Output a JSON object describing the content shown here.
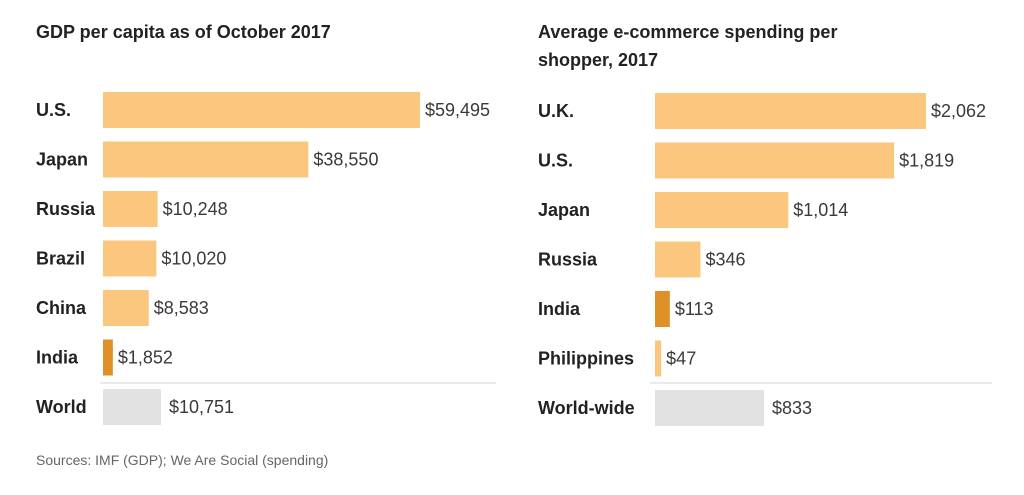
{
  "colors": {
    "bar": "#fbc67e",
    "highlight": "#df9128",
    "world": "#e2e2e2",
    "divider": "#d6d6d6"
  },
  "chart_data": [
    {
      "type": "bar",
      "orientation": "horizontal",
      "title": "GDP per capita as of October 2017",
      "categories": [
        "U.S.",
        "Japan",
        "Russia",
        "Brazil",
        "China",
        "India"
      ],
      "values": [
        59495,
        38550,
        10248,
        10020,
        8583,
        1852
      ],
      "value_labels": [
        "$59,495",
        "$38,550",
        "$10,248",
        "$10,020",
        "$8,583",
        "$1,852"
      ],
      "highlight": [
        "India"
      ],
      "reference": {
        "category": "World",
        "value": 10751,
        "value_label": "$10,751"
      },
      "xlim": [
        0,
        59495
      ]
    },
    {
      "type": "bar",
      "orientation": "horizontal",
      "title": "Average e-commerce spending per shopper, 2017",
      "categories": [
        "U.K.",
        "U.S.",
        "Japan",
        "Russia",
        "India",
        "Philippines"
      ],
      "values": [
        2062,
        1819,
        1014,
        346,
        113,
        47
      ],
      "value_labels": [
        "$2,062",
        "$1,819",
        "$1,014",
        "$346",
        "$113",
        "$47"
      ],
      "highlight": [
        "India"
      ],
      "reference": {
        "category": "World-wide",
        "value": 833,
        "value_label": "$833"
      },
      "xlim": [
        0,
        2062
      ]
    }
  ],
  "source": "Sources: IMF (GDP); We Are Social (spending)"
}
